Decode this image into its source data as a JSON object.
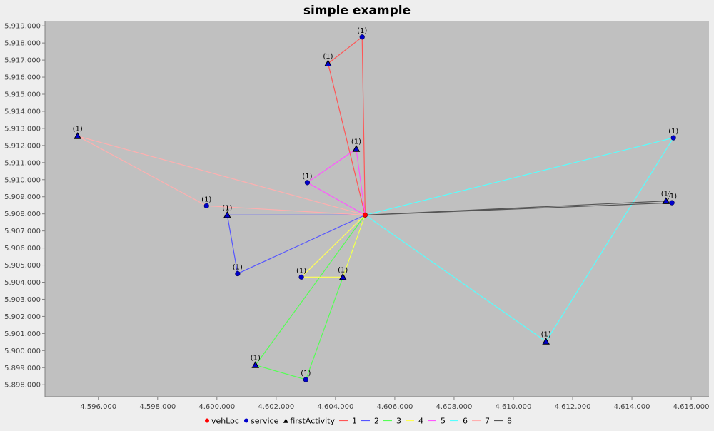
{
  "chart_data": {
    "type": "scatter",
    "title": "simple example",
    "xlabel": "",
    "ylabel": "",
    "xlim": [
      4594200,
      4616600
    ],
    "ylim": [
      5897300,
      5919300
    ],
    "x_ticks": [
      4596000,
      4598000,
      4600000,
      4602000,
      4604000,
      4606000,
      4608000,
      4610000,
      4612000,
      4614000,
      4616000
    ],
    "y_ticks": [
      5898000,
      5899000,
      5900000,
      5901000,
      5902000,
      5903000,
      5904000,
      5905000,
      5906000,
      5907000,
      5908000,
      5909000,
      5910000,
      5911000,
      5912000,
      5913000,
      5914000,
      5915000,
      5916000,
      5917000,
      5918000,
      5919000
    ],
    "grid": false,
    "legend_position": "bottom",
    "legend": [
      {
        "label": "vehLoc",
        "kind": "dot",
        "color": "#ff0000"
      },
      {
        "label": "service",
        "kind": "dot",
        "color": "#0000cc"
      },
      {
        "label": "firstActivity",
        "kind": "triangle",
        "color": "#000000"
      },
      {
        "label": "1",
        "kind": "line",
        "color": "#ff5555"
      },
      {
        "label": "2",
        "kind": "line",
        "color": "#5555ff"
      },
      {
        "label": "3",
        "kind": "line",
        "color": "#55ff55"
      },
      {
        "label": "4",
        "kind": "line",
        "color": "#ffff55"
      },
      {
        "label": "5",
        "kind": "line",
        "color": "#ff55ff"
      },
      {
        "label": "6",
        "kind": "line",
        "color": "#55ffff"
      },
      {
        "label": "7",
        "kind": "line",
        "color": "#ffafaf"
      },
      {
        "label": "8",
        "kind": "line",
        "color": "#555555"
      }
    ],
    "vehLoc": {
      "x": 4605000,
      "y": 5907930,
      "color": "#ff0000"
    },
    "routes": [
      {
        "name": "1",
        "color": "#ff5555",
        "points": [
          [
            4605000,
            5907930
          ],
          [
            4603750,
            5916800
          ],
          [
            4604900,
            5918350
          ],
          [
            4605000,
            5907930
          ]
        ]
      },
      {
        "name": "2",
        "color": "#5555ff",
        "points": [
          [
            4605000,
            5907930
          ],
          [
            4600350,
            5907930
          ],
          [
            4600700,
            5904500
          ],
          [
            4605000,
            5907930
          ]
        ]
      },
      {
        "name": "3",
        "color": "#55ff55",
        "points": [
          [
            4605000,
            5907930
          ],
          [
            4601300,
            5899150
          ],
          [
            4603000,
            5898300
          ],
          [
            4604250,
            5904300
          ],
          [
            4605000,
            5907930
          ]
        ]
      },
      {
        "name": "4",
        "color": "#ffff55",
        "points": [
          [
            4605000,
            5907930
          ],
          [
            4602850,
            5904300
          ],
          [
            4604250,
            5904300
          ],
          [
            4605000,
            5907930
          ]
        ]
      },
      {
        "name": "5",
        "color": "#ff55ff",
        "points": [
          [
            4605000,
            5907930
          ],
          [
            4603050,
            5909830
          ],
          [
            4604700,
            5911800
          ],
          [
            4605000,
            5907930
          ]
        ]
      },
      {
        "name": "6",
        "color": "#55ffff",
        "points": [
          [
            4605000,
            5907930
          ],
          [
            4611100,
            5900530
          ],
          [
            4615400,
            5912450
          ],
          [
            4605000,
            5907930
          ]
        ]
      },
      {
        "name": "7",
        "color": "#ffafaf",
        "points": [
          [
            4605000,
            5907930
          ],
          [
            4595300,
            5912550
          ],
          [
            4599650,
            5908470
          ],
          [
            4605000,
            5907930
          ]
        ]
      },
      {
        "name": "8",
        "color": "#555555",
        "points": [
          [
            4605000,
            5907930
          ],
          [
            4615350,
            5908650
          ],
          [
            4615150,
            5908750
          ],
          [
            4605000,
            5907930
          ]
        ]
      }
    ],
    "services": [
      {
        "x": 4604900,
        "y": 5918350,
        "label": "(1)"
      },
      {
        "x": 4600700,
        "y": 5904500,
        "label": "(1)"
      },
      {
        "x": 4603000,
        "y": 5898300,
        "label": "(1)"
      },
      {
        "x": 4602850,
        "y": 5904300,
        "label": "(1)"
      },
      {
        "x": 4603050,
        "y": 5909830,
        "label": "(1)"
      },
      {
        "x": 4615400,
        "y": 5912450,
        "label": "(1)"
      },
      {
        "x": 4599650,
        "y": 5908470,
        "label": "(1)"
      },
      {
        "x": 4615350,
        "y": 5908650,
        "label": "(1)"
      }
    ],
    "first_activities": [
      {
        "x": 4603750,
        "y": 5916800,
        "label": "(1)"
      },
      {
        "x": 4600350,
        "y": 5907930,
        "label": "(1)"
      },
      {
        "x": 4601300,
        "y": 5899150,
        "label": "(1)"
      },
      {
        "x": 4604250,
        "y": 5904300,
        "label": "(1)"
      },
      {
        "x": 4604700,
        "y": 5911800,
        "label": "(1)"
      },
      {
        "x": 4611100,
        "y": 5900530,
        "label": "(1)"
      },
      {
        "x": 4595300,
        "y": 5912550,
        "label": "(1)"
      },
      {
        "x": 4615150,
        "y": 5908750,
        "label": "(1)"
      }
    ]
  }
}
